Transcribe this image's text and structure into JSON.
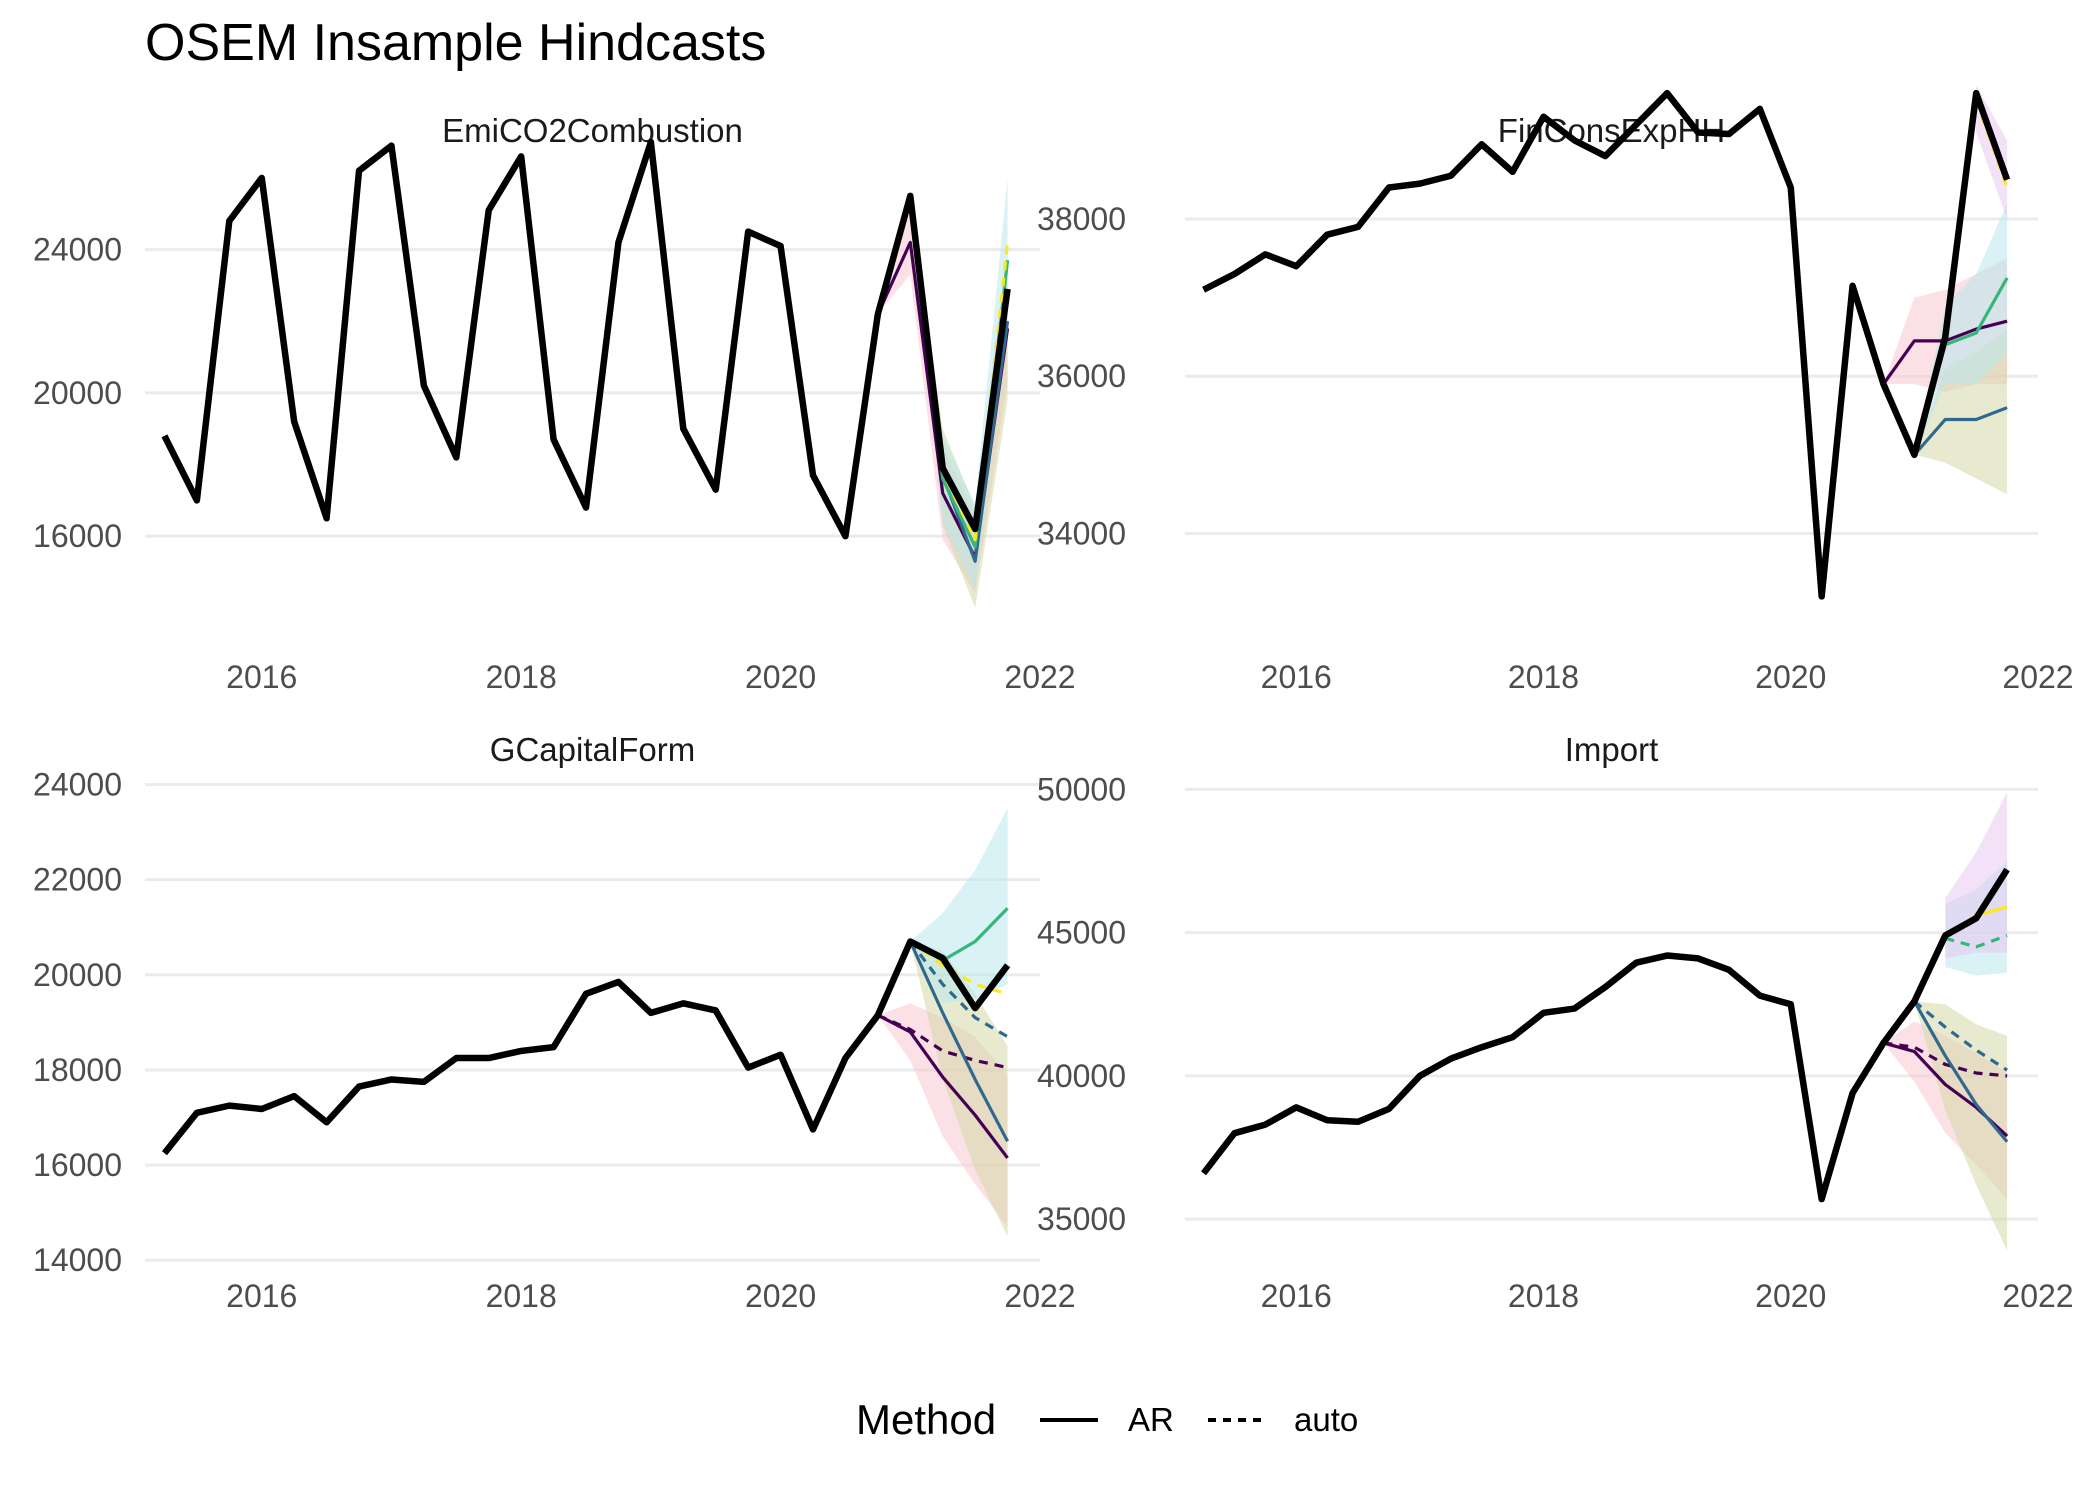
{
  "chart_data": {
    "title": "OSEM Insample Hindcasts",
    "type": "line",
    "x_ticks": [
      2016,
      2018,
      2020,
      2022
    ],
    "legend": {
      "title": "Method",
      "position": "bottom",
      "entries": [
        {
          "label": "AR",
          "linestyle": "solid"
        },
        {
          "label": "auto",
          "linestyle": "dashed"
        }
      ]
    },
    "colors": {
      "actual": "#000000",
      "purple": "#440154",
      "blue": "#31688e",
      "green": "#35b779",
      "yellow": "#fde725",
      "band_pink": "#f8c8d0",
      "band_olive": "#d6d8a8",
      "band_cyan": "#b8e8ee",
      "band_violet": "#e8c8f0"
    },
    "panels": [
      {
        "title": "EmiCO2Combustion",
        "xlim": [
          2015.1,
          2022.0
        ],
        "ylim": [
          13800,
          26500
        ],
        "y_ticks": [
          16000,
          20000,
          24000
        ],
        "actual": {
          "x": [
            2015.25,
            2015.5,
            2015.75,
            2016.0,
            2016.25,
            2016.5,
            2016.75,
            2017.0,
            2017.25,
            2017.5,
            2017.75,
            2018.0,
            2018.25,
            2018.5,
            2018.75,
            2019.0,
            2019.25,
            2019.5,
            2019.75,
            2020.0,
            2020.25,
            2020.5,
            2020.75,
            2021.0,
            2021.25,
            2021.5,
            2021.75
          ],
          "y": [
            18800,
            17000,
            24800,
            26000,
            19200,
            16500,
            26200,
            26900,
            20200,
            18200,
            25100,
            26600,
            18700,
            16800,
            24200,
            27000,
            19000,
            17300,
            24500,
            24100,
            17700,
            16000,
            22200,
            25500,
            17900,
            16200,
            22900
          ]
        },
        "forecasts": [
          {
            "method": "AR",
            "color": "purple",
            "x": [
              2020.75,
              2021.0,
              2021.25,
              2021.5,
              2021.75
            ],
            "y": [
              22200,
              24200,
              17200,
              15400,
              21800
            ],
            "band": {
              "color": "band_pink",
              "lo": [
                22200,
                23300,
                15900,
                14400,
                20300
              ],
              "hi": [
                22200,
                25100,
                18500,
                16600,
                23300
              ]
            }
          },
          {
            "method": "AR",
            "color": "blue",
            "x": [
              2021.0,
              2021.25,
              2021.5,
              2021.75
            ],
            "y": [
              25500,
              17700,
              15300,
              22000
            ],
            "band": {
              "color": "band_olive",
              "lo": [
                25500,
                16300,
                14000,
                19800
              ],
              "hi": [
                25500,
                19000,
                16800,
                24000
              ]
            }
          },
          {
            "method": "AR",
            "color": "green",
            "x": [
              2021.0,
              2021.25,
              2021.5,
              2021.75
            ],
            "y": [
              25500,
              17600,
              15700,
              23700
            ],
            "band": {
              "color": "band_cyan",
              "lo": [
                25500,
                16400,
                14500,
                21900
              ],
              "hi": [
                25500,
                18800,
                16900,
                26000
              ]
            }
          },
          {
            "method": "auto",
            "color": "yellow",
            "x": [
              2021.0,
              2021.25,
              2021.5,
              2021.75
            ],
            "y": [
              25500,
              17800,
              15900,
              24200
            ],
            "band": null
          }
        ]
      },
      {
        "title": "FinConsExpHH",
        "xlim": [
          2015.1,
          2022.0
        ],
        "ylim": [
          32900,
          38750
        ],
        "y_ticks": [
          34000,
          36000,
          38000
        ],
        "actual": {
          "x": [
            2015.25,
            2015.5,
            2015.75,
            2016.0,
            2016.25,
            2016.5,
            2016.75,
            2017.0,
            2017.25,
            2017.5,
            2017.75,
            2018.0,
            2018.25,
            2018.5,
            2018.75,
            2019.0,
            2019.25,
            2019.5,
            2019.75,
            2020.0,
            2020.25,
            2020.5,
            2020.75,
            2021.0,
            2021.25,
            2021.5,
            2021.75
          ],
          "y": [
            37100,
            37300,
            37550,
            37400,
            37800,
            37900,
            38400,
            38450,
            38550,
            38950,
            38600,
            39300,
            39000,
            38800,
            39200,
            39600,
            39100,
            39080,
            39400,
            38400,
            33200,
            37150,
            35900,
            35000,
            36500,
            39600,
            38500
          ]
        },
        "forecasts": [
          {
            "method": "AR",
            "color": "purple",
            "x": [
              2020.75,
              2021.0,
              2021.25,
              2021.5,
              2021.75
            ],
            "y": [
              35900,
              36450,
              36450,
              36600,
              36700
            ],
            "band": {
              "color": "band_pink",
              "lo": [
                35900,
                35900,
                35800,
                35900,
                35900
              ],
              "hi": [
                35900,
                37000,
                37100,
                37300,
                37500
              ]
            }
          },
          {
            "method": "AR",
            "color": "blue",
            "x": [
              2021.0,
              2021.25,
              2021.5,
              2021.75
            ],
            "y": [
              35000,
              35450,
              35450,
              35600
            ],
            "band": {
              "color": "band_olive",
              "lo": [
                35000,
                34900,
                34700,
                34500
              ],
              "hi": [
                35000,
                36100,
                36300,
                36600
              ]
            }
          },
          {
            "method": "AR",
            "color": "green",
            "x": [
              2021.0,
              2021.25,
              2021.5,
              2021.75
            ],
            "y": [
              35000,
              36400,
              36550,
              37250
            ],
            "band": {
              "color": "band_cyan",
              "lo": [
                35000,
                35900,
                35900,
                36300
              ],
              "hi": [
                35000,
                36900,
                37300,
                38200
              ]
            }
          },
          {
            "method": "auto",
            "color": "yellow",
            "x": [
              2021.5,
              2021.75
            ],
            "y": [
              39500,
              38400
            ],
            "band": {
              "color": "band_violet",
              "lo": [
                39100,
                38000
              ],
              "hi": [
                39700,
                39000
              ]
            }
          }
        ]
      },
      {
        "title": "GCapitalForm",
        "xlim": [
          2015.1,
          2022.0
        ],
        "ylim": [
          13900,
          24200
        ],
        "y_ticks": [
          14000,
          16000,
          18000,
          20000,
          22000,
          24000
        ],
        "actual": {
          "x": [
            2015.25,
            2015.5,
            2015.75,
            2016.0,
            2016.25,
            2016.5,
            2016.75,
            2017.0,
            2017.25,
            2017.5,
            2017.75,
            2018.0,
            2018.25,
            2018.5,
            2018.75,
            2019.0,
            2019.25,
            2019.5,
            2019.75,
            2020.0,
            2020.25,
            2020.5,
            2020.75,
            2021.0,
            2021.25,
            2021.5,
            2021.75
          ],
          "y": [
            16250,
            17100,
            17250,
            17180,
            17450,
            16900,
            17650,
            17800,
            17750,
            18250,
            18250,
            18400,
            18480,
            19600,
            19850,
            19200,
            19400,
            19250,
            18050,
            18320,
            16750,
            18250,
            19150,
            20700,
            20350,
            19300,
            20200
          ]
        },
        "forecasts": [
          {
            "method": "AR",
            "color": "purple",
            "x": [
              2020.75,
              2021.0,
              2021.25,
              2021.5,
              2021.75
            ],
            "y": [
              19150,
              18800,
              17850,
              17050,
              16150
            ],
            "band": {
              "color": "band_pink",
              "lo": [
                19150,
                18200,
                16600,
                15600,
                14700
              ],
              "hi": [
                19150,
                19400,
                19100,
                18700,
                17900
              ]
            }
          },
          {
            "method": "auto",
            "color": "purple",
            "x": [
              2020.75,
              2021.0,
              2021.25,
              2021.5,
              2021.75
            ],
            "y": [
              19150,
              18850,
              18400,
              18200,
              18050
            ],
            "band": null
          },
          {
            "method": "AR",
            "color": "blue",
            "x": [
              2021.0,
              2021.25,
              2021.5,
              2021.75
            ],
            "y": [
              20700,
              19200,
              17800,
              16500
            ],
            "band": {
              "color": "band_olive",
              "lo": [
                20700,
                17800,
                15900,
                14500
              ],
              "hi": [
                20700,
                20500,
                19600,
                18500
              ]
            }
          },
          {
            "method": "auto",
            "color": "blue",
            "x": [
              2021.0,
              2021.25,
              2021.5,
              2021.75
            ],
            "y": [
              20700,
              19800,
              19100,
              18700
            ],
            "band": null
          },
          {
            "method": "AR",
            "color": "green",
            "x": [
              2021.0,
              2021.25,
              2021.5,
              2021.75
            ],
            "y": [
              20700,
              20300,
              20700,
              21400
            ],
            "band": {
              "color": "band_cyan",
              "lo": [
                20700,
                19400,
                19500,
                19800
              ],
              "hi": [
                20700,
                21300,
                22200,
                23500
              ]
            }
          },
          {
            "method": "auto",
            "color": "yellow",
            "x": [
              2021.0,
              2021.25,
              2021.5,
              2021.75
            ],
            "y": [
              20700,
              20200,
              19800,
              19600
            ],
            "band": null
          }
        ]
      },
      {
        "title": "Import",
        "xlim": [
          2015.1,
          2022.0
        ],
        "ylim": [
          33400,
          50500
        ],
        "y_ticks": [
          35000,
          40000,
          45000,
          50000
        ],
        "actual": {
          "x": [
            2015.25,
            2015.5,
            2015.75,
            2016.0,
            2016.25,
            2016.5,
            2016.75,
            2017.0,
            2017.25,
            2017.5,
            2017.75,
            2018.0,
            2018.25,
            2018.5,
            2018.75,
            2019.0,
            2019.25,
            2019.5,
            2019.75,
            2020.0,
            2020.25,
            2020.5,
            2020.75,
            2021.0,
            2021.25,
            2021.5,
            2021.75
          ],
          "y": [
            36600,
            38000,
            38300,
            38900,
            38450,
            38400,
            38850,
            40000,
            40600,
            41000,
            41350,
            42200,
            42350,
            43100,
            43950,
            44200,
            44100,
            43700,
            42800,
            42500,
            35700,
            39400,
            41150,
            42600,
            44900,
            45500,
            47200
          ]
        },
        "forecasts": [
          {
            "method": "AR",
            "color": "purple",
            "x": [
              2020.75,
              2021.0,
              2021.25,
              2021.5,
              2021.75
            ],
            "y": [
              41150,
              40850,
              39700,
              38900,
              37900
            ],
            "band": {
              "color": "band_pink",
              "lo": [
                41150,
                39800,
                38000,
                36900,
                35700
              ],
              "hi": [
                41150,
                41900,
                41400,
                40800,
                40100
              ]
            }
          },
          {
            "method": "auto",
            "color": "purple",
            "x": [
              2020.75,
              2021.0,
              2021.25,
              2021.5,
              2021.75
            ],
            "y": [
              41150,
              41000,
              40400,
              40100,
              40000
            ],
            "band": null
          },
          {
            "method": "AR",
            "color": "blue",
            "x": [
              2021.0,
              2021.25,
              2021.5,
              2021.75
            ],
            "y": [
              42600,
              40700,
              39000,
              37700
            ],
            "band": {
              "color": "band_olive",
              "lo": [
                42600,
                38800,
                36200,
                33900
              ],
              "hi": [
                42600,
                42500,
                41800,
                41400
              ]
            }
          },
          {
            "method": "auto",
            "color": "blue",
            "x": [
              2021.0,
              2021.25,
              2021.5,
              2021.75
            ],
            "y": [
              42600,
              41700,
              40900,
              40200
            ],
            "band": null
          },
          {
            "method": "auto",
            "color": "green",
            "x": [
              2021.25,
              2021.5,
              2021.75
            ],
            "y": [
              44800,
              44500,
              44900
            ],
            "band": {
              "color": "band_cyan",
              "lo": [
                43800,
                43500,
                43600
              ],
              "hi": [
                46000,
                46500,
                47500
              ]
            }
          },
          {
            "method": "AR",
            "color": "yellow",
            "x": [
              2021.25,
              2021.5,
              2021.75
            ],
            "y": [
              44900,
              45600,
              45900
            ],
            "band": {
              "color": "band_violet",
              "lo": [
                44100,
                44300,
                44300
              ],
              "hi": [
                46200,
                47800,
                49900
              ]
            }
          }
        ]
      }
    ]
  }
}
